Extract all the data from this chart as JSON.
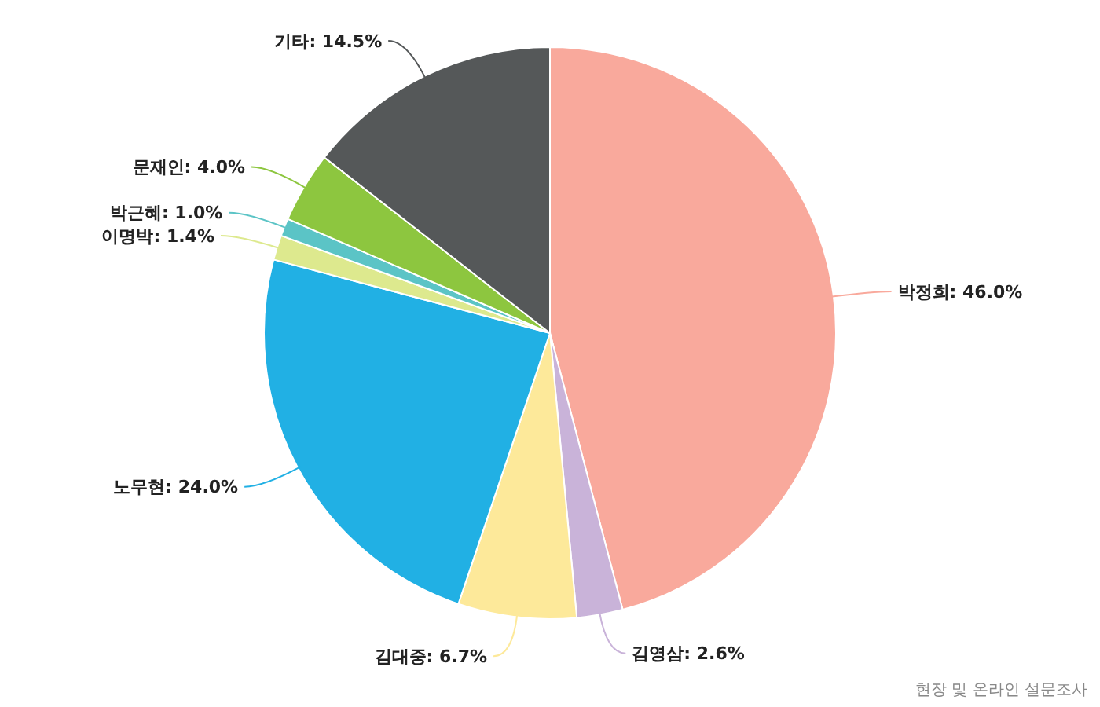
{
  "chart_data": {
    "type": "pie",
    "categories": [
      "박정희",
      "김영삼",
      "김대중",
      "노무현",
      "이명박",
      "박근혜",
      "문재인",
      "기타"
    ],
    "values": [
      46.0,
      2.6,
      6.7,
      24.0,
      1.4,
      1.0,
      4.0,
      14.5
    ],
    "value_labels": [
      "46.0%",
      "2.6%",
      "6.7%",
      "24.0%",
      "1.4%",
      "1.0%",
      "4.0%",
      "14.5%"
    ],
    "colors": [
      "#f9a99c",
      "#c9b3d9",
      "#fde99a",
      "#21b0e4",
      "#dde98e",
      "#5bc4c6",
      "#8dc63f",
      "#555859"
    ],
    "annotations": [
      "현장 및 온라인 설문조사"
    ]
  }
}
